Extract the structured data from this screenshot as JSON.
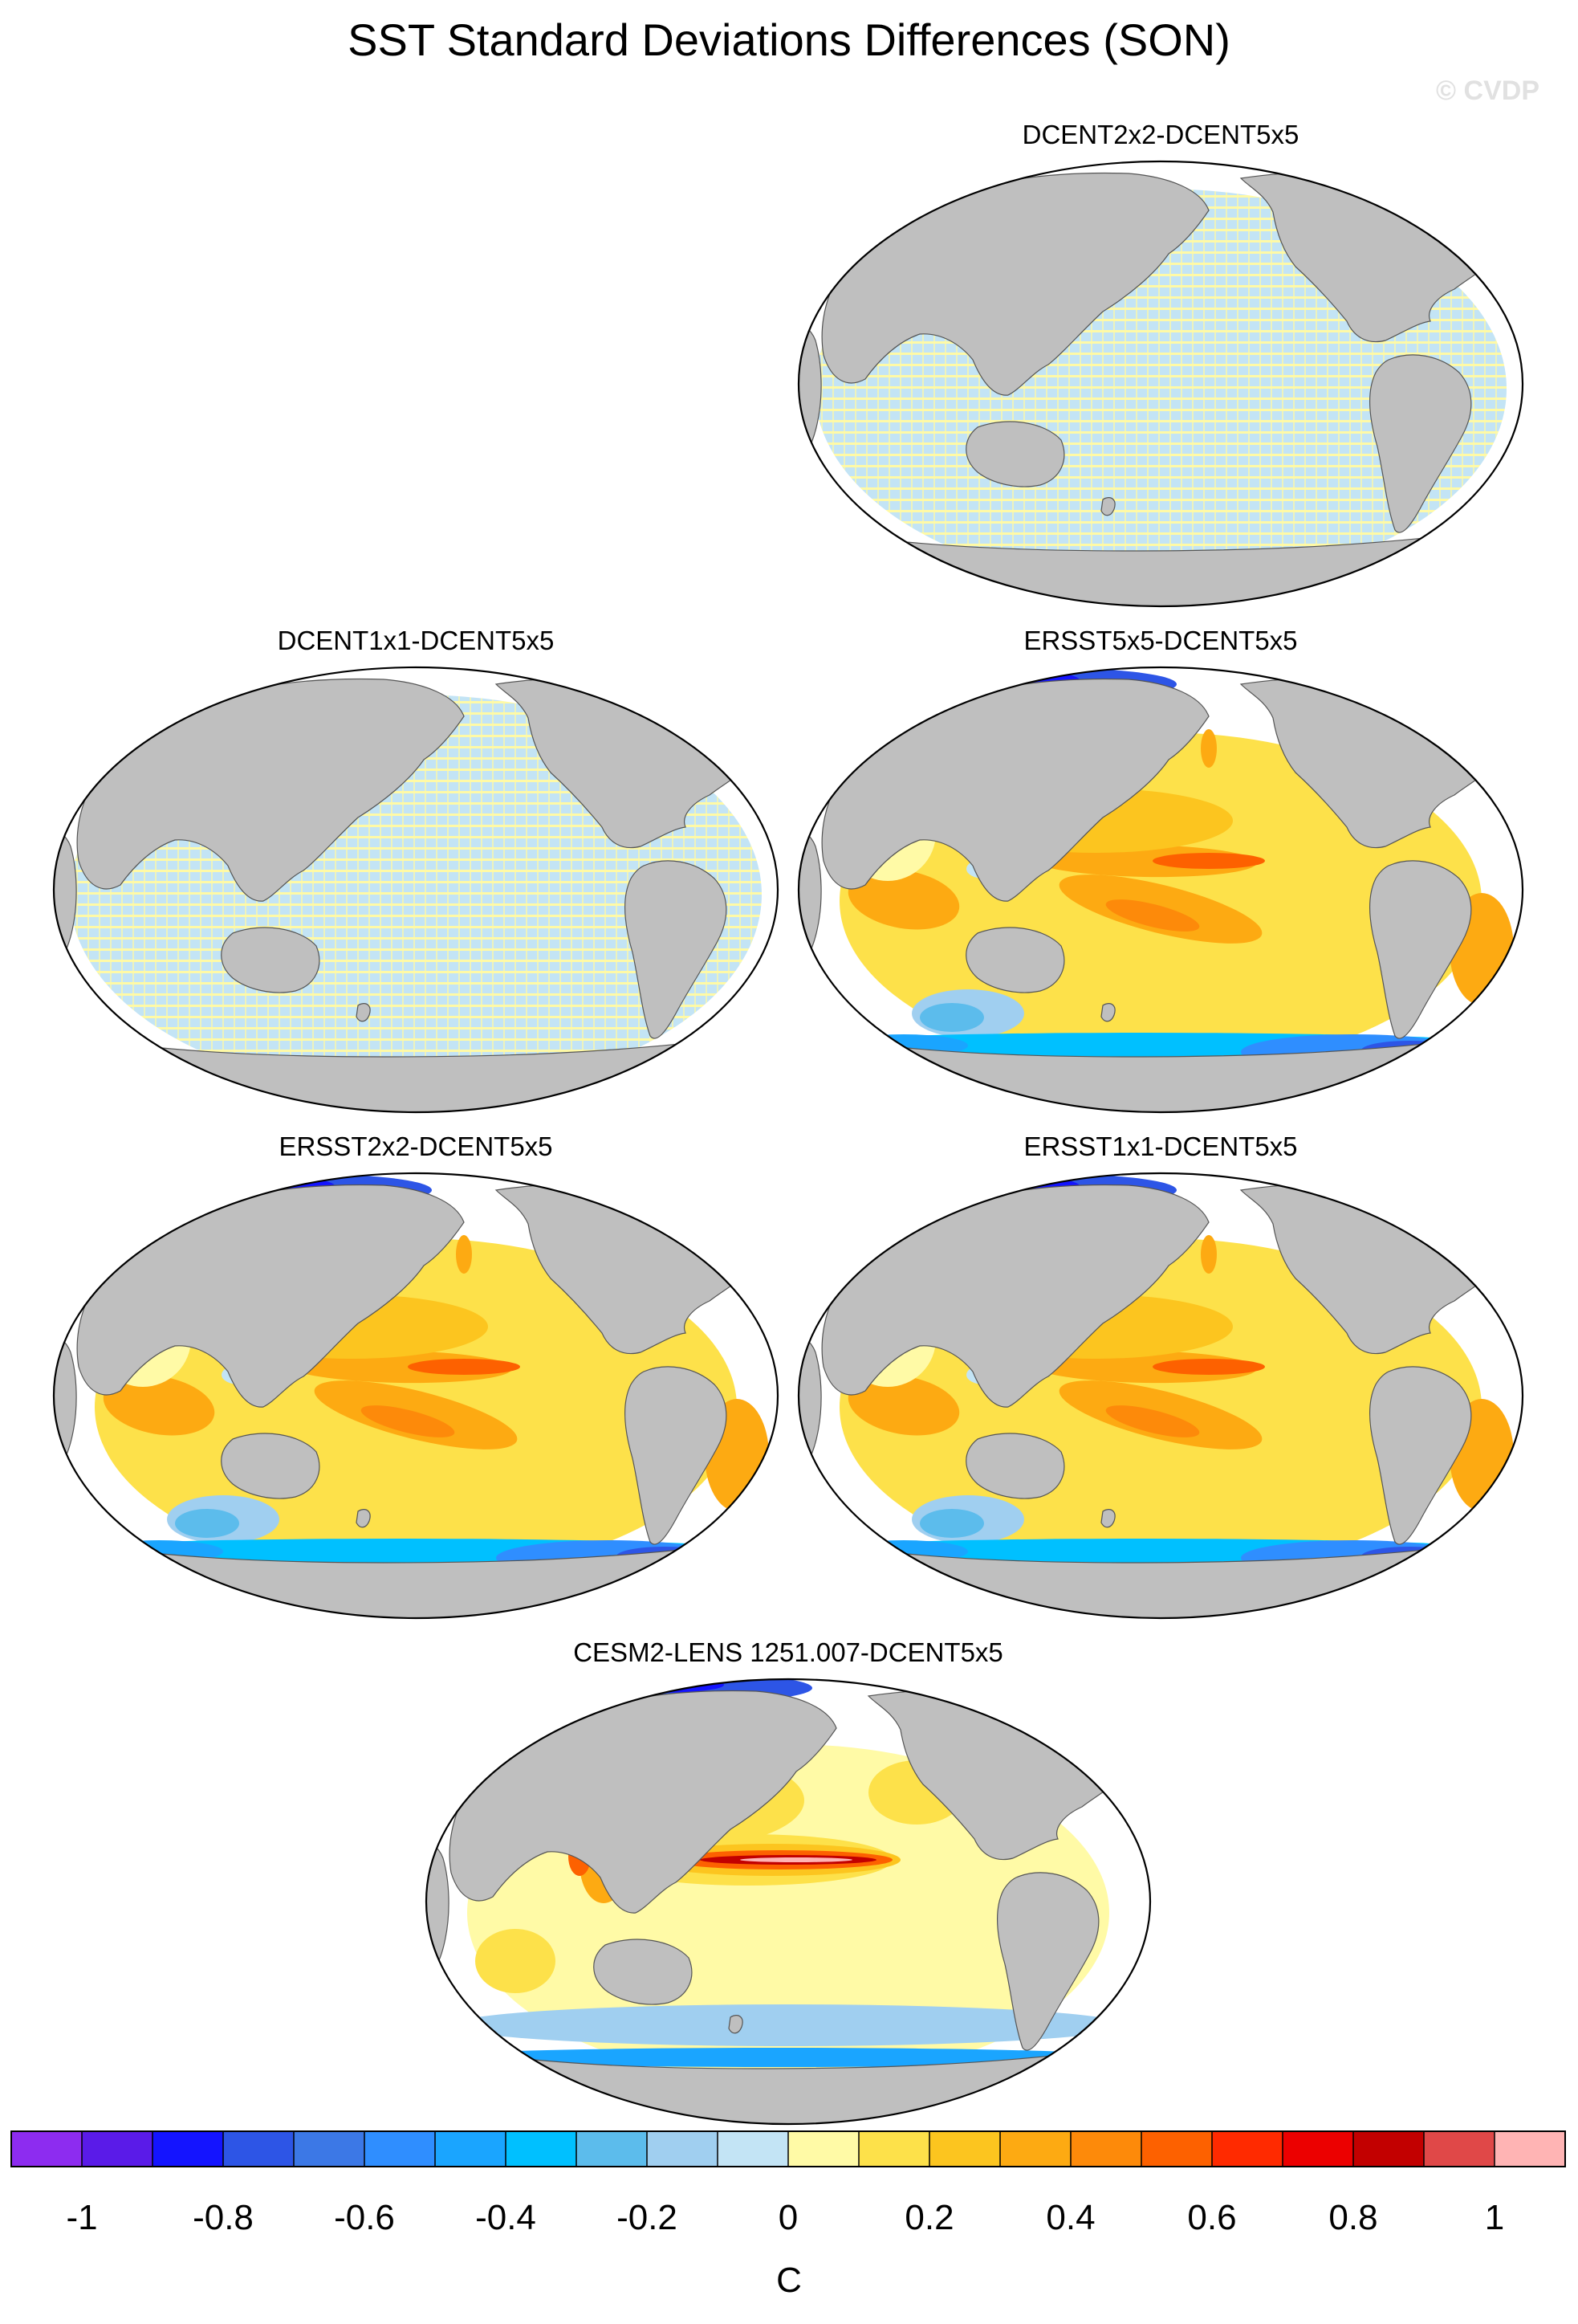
{
  "figure": {
    "title": "SST Standard Deviations Differences (SON)",
    "watermark": "© CVDP"
  },
  "panels": [
    {
      "id": "dcent2x2",
      "title": "DCENT2x2-DCENT5x5",
      "pattern": "grid-noise"
    },
    {
      "id": "dcent1x1",
      "title": "DCENT1x1-DCENT5x5",
      "pattern": "grid-noise"
    },
    {
      "id": "ersst5x5",
      "title": "ERSST5x5-DCENT5x5",
      "pattern": "ersst"
    },
    {
      "id": "ersst2x2",
      "title": "ERSST2x2-DCENT5x5",
      "pattern": "ersst"
    },
    {
      "id": "ersst1x1",
      "title": "ERSST1x1-DCENT5x5",
      "pattern": "ersst"
    },
    {
      "id": "cesm2",
      "title": "CESM2-LENS 1251.007-DCENT5x5",
      "pattern": "cesm"
    }
  ],
  "colorbar": {
    "unit": "C",
    "tick_labels": [
      "-1",
      "-0.8",
      "-0.6",
      "-0.4",
      "-0.2",
      "0",
      "0.2",
      "0.4",
      "0.6",
      "0.8",
      "1"
    ],
    "tick_values": [
      -1,
      -0.8,
      -0.6,
      -0.4,
      -0.2,
      0,
      0.2,
      0.4,
      0.6,
      0.8,
      1
    ],
    "range": [
      -1.1,
      1.1
    ],
    "colors": [
      "#8d2cf0",
      "#5a1be8",
      "#1414ff",
      "#2d55e6",
      "#3c78e6",
      "#2f8eff",
      "#1aa5ff",
      "#00c0ff",
      "#5cbcec",
      "#a0cff0",
      "#c3e4f5",
      "#fffaa6",
      "#fde14a",
      "#fcc51f",
      "#fdaa12",
      "#fd8a0a",
      "#fd6100",
      "#ff2a00",
      "#ec0000",
      "#c20000",
      "#e04848",
      "#ffb4b4"
    ]
  },
  "colors": {
    "land": "#bfbfbf",
    "background": "#ffffff"
  }
}
